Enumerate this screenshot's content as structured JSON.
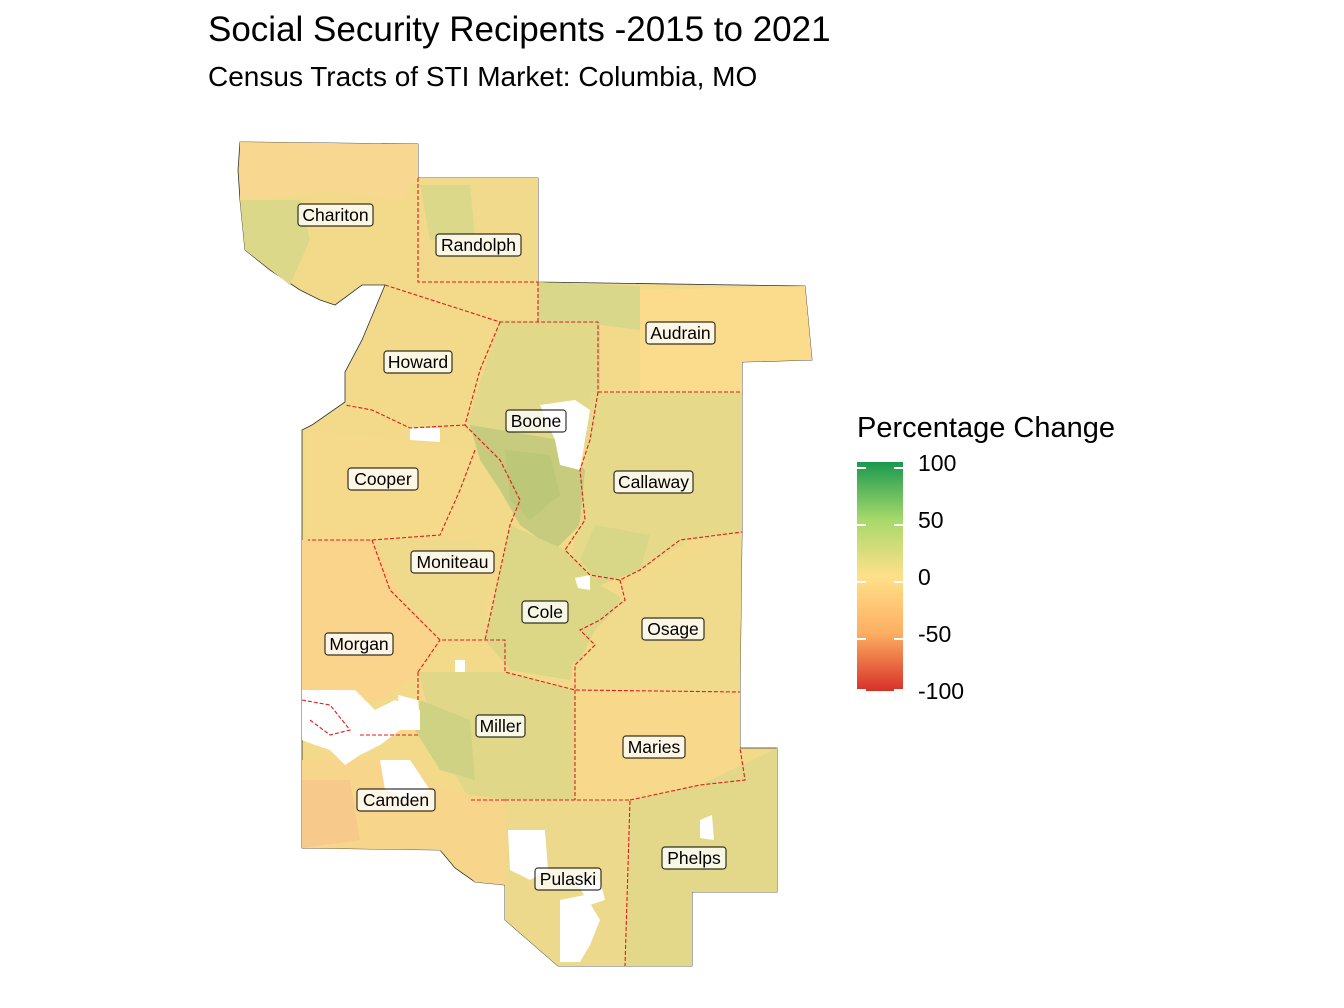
{
  "title": "Social Security Recipents -2015 to 2021",
  "subtitle": "Census Tracts of STI Market: Columbia, MO",
  "legend": {
    "title": "Percentage Change",
    "ticks": [
      "100",
      "50",
      "0",
      "-50",
      "-100"
    ],
    "colors": {
      "high": "#1a9850",
      "mid_high": "#a6d96a",
      "mid": "#ffe08a",
      "mid_low": "#fdae61",
      "low": "#d73027"
    }
  },
  "colors": {
    "county_border": "#e31a1c",
    "na_fill": "#ffffff",
    "yellow": "#f3da8a",
    "light_green": "#d8d98a",
    "green": "#c4cb7f",
    "orange": "#f9d38a"
  },
  "counties": [
    {
      "name": "Chariton",
      "label": "Chariton"
    },
    {
      "name": "Randolph",
      "label": "Randolph"
    },
    {
      "name": "Audrain",
      "label": "Audrain"
    },
    {
      "name": "Howard",
      "label": "Howard"
    },
    {
      "name": "Boone",
      "label": "Boone"
    },
    {
      "name": "Cooper",
      "label": "Cooper"
    },
    {
      "name": "Callaway",
      "label": "Callaway"
    },
    {
      "name": "Moniteau",
      "label": "Moniteau"
    },
    {
      "name": "Cole",
      "label": "Cole"
    },
    {
      "name": "Osage",
      "label": "Osage"
    },
    {
      "name": "Morgan",
      "label": "Morgan"
    },
    {
      "name": "Miller",
      "label": "Miller"
    },
    {
      "name": "Maries",
      "label": "Maries"
    },
    {
      "name": "Camden",
      "label": "Camden"
    },
    {
      "name": "Phelps",
      "label": "Phelps"
    },
    {
      "name": "Pulaski",
      "label": "Pulaski"
    }
  ]
}
